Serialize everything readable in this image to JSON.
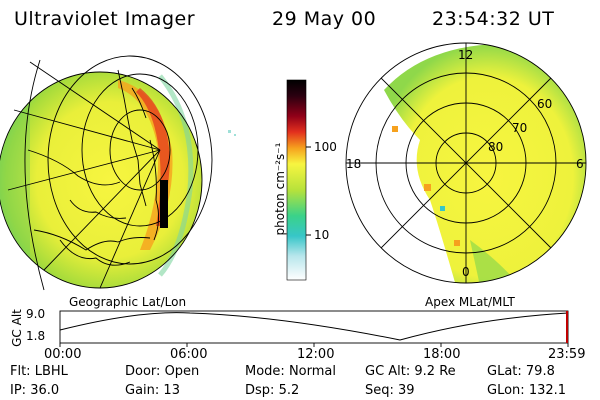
{
  "header": {
    "instrument": "Ultraviolet Imager",
    "date": "29 May 00",
    "time": "23:54:32 UT"
  },
  "colorbar": {
    "unit_label": "photon cm⁻²s⁻¹",
    "ticks": [
      "100",
      "10"
    ],
    "colors": [
      "#ffffff",
      "#37c6c8",
      "#3ad28a",
      "#b7e23b",
      "#f7f540",
      "#f6a11e",
      "#e2301e",
      "#8f0018",
      "#2b0010",
      "#000000"
    ]
  },
  "left_panel": {
    "caption": "Geographic Lat/Lon"
  },
  "right_panel": {
    "caption": "Apex MLat/MLT",
    "mlt_labels": {
      "top": "12",
      "left": "18",
      "right": "6",
      "bottom": "0"
    },
    "mlat_labels": [
      "60",
      "70",
      "80"
    ]
  },
  "altitude_plot": {
    "axis_label": "GC Alt",
    "y_ticks": [
      "9.0",
      "1.8"
    ],
    "x_ticks": [
      "00:00",
      "06:00",
      "12:00",
      "18:00",
      "23:59"
    ],
    "line_color": "#000000",
    "marker_color": "#c00000"
  },
  "status": {
    "row1": [
      {
        "label": "Flt:",
        "value": "LBHL"
      },
      {
        "label": "Door:",
        "value": "Open"
      },
      {
        "label": "Mode:",
        "value": "Normal"
      },
      {
        "label": "GC Alt:",
        "value": "9.2 Re"
      },
      {
        "label": "GLat:",
        "value": "79.8"
      }
    ],
    "row2": [
      {
        "label": "IP:",
        "value": "36.0"
      },
      {
        "label": "Gain:",
        "value": "13"
      },
      {
        "label": "Dsp:",
        "value": "5.2"
      },
      {
        "label": "Seq:",
        "value": "39"
      },
      {
        "label": "GLon:",
        "value": "132.1"
      }
    ]
  }
}
